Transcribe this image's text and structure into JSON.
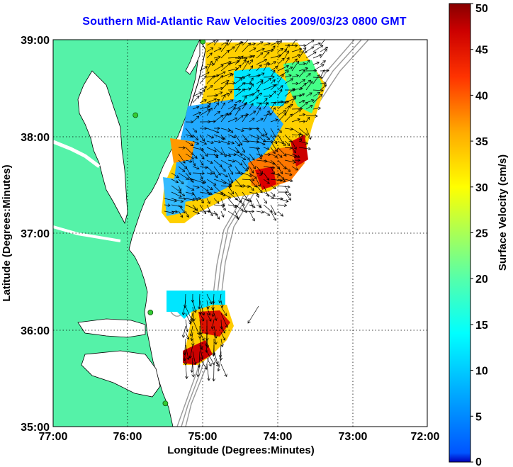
{
  "title": "Southern Mid-Atlantic Raw Velocities 2009/03/23 0800 GMT",
  "axes": {
    "xlabel": "Longitude (Degrees:Minutes)",
    "ylabel": "Latitude (Degrees:Minutes)",
    "x_ticks": [
      "77:00",
      "76:00",
      "75:00",
      "74:00",
      "73:00",
      "72:00"
    ],
    "y_ticks": [
      "39:00",
      "38:00",
      "37:00",
      "36:00",
      "35:00"
    ]
  },
  "colorbar": {
    "label": "Surface Velocity (cm/s)",
    "ticks": [
      "0",
      "5",
      "10",
      "15",
      "20",
      "25",
      "30",
      "35",
      "40",
      "45",
      "50"
    ],
    "min": 0,
    "max": 50
  },
  "colors": {
    "land": "#55f2a8",
    "title": "#0000ff",
    "grid": "#000000",
    "bathymetry": "#999999",
    "station": "#33cc33"
  },
  "map": {
    "lon_range": [
      -77,
      -72
    ],
    "lat_range": [
      35,
      39
    ],
    "grid": "dotted",
    "stations": [
      {
        "lon": -75.0,
        "lat": 38.98
      },
      {
        "lon": -75.9,
        "lat": 38.22
      },
      {
        "lon": -75.7,
        "lat": 36.18
      },
      {
        "lon": -75.5,
        "lat": 35.24
      }
    ]
  }
}
